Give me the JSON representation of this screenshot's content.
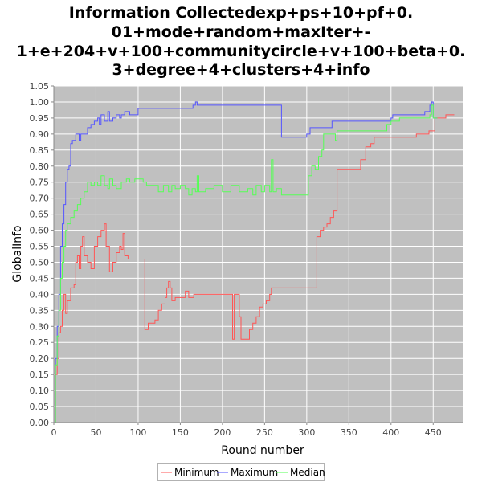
{
  "chart_data": {
    "type": "line",
    "title_lines": [
      "Information Collectedexp+ps+10+pf+0.",
      "01+mode+random+maxIter+-",
      "1+e+204+v+100+communitycircle+v+100+beta+0.",
      "3+degree+4+clusters+4+info"
    ],
    "xlabel": "Round number",
    "ylabel": "GlobalInfo",
    "xlim": [
      0,
      485
    ],
    "ylim": [
      0.0,
      1.05
    ],
    "x_ticks": [
      0,
      50,
      100,
      150,
      200,
      250,
      300,
      350,
      400,
      450
    ],
    "y_ticks": [
      "0.00",
      "0.05",
      "0.10",
      "0.15",
      "0.20",
      "0.25",
      "0.30",
      "0.35",
      "0.40",
      "0.45",
      "0.50",
      "0.55",
      "0.60",
      "0.65",
      "0.70",
      "0.75",
      "0.80",
      "0.85",
      "0.90",
      "0.95",
      "1.00",
      "1.05"
    ],
    "grid": true,
    "legend_position": "bottom-center",
    "background": "#c0c0c0",
    "series": [
      {
        "name": "Minimum",
        "color": "#ff5555",
        "points": [
          [
            0,
            0.0
          ],
          [
            2,
            0.15
          ],
          [
            4,
            0.2
          ],
          [
            6,
            0.28
          ],
          [
            8,
            0.3
          ],
          [
            10,
            0.35
          ],
          [
            12,
            0.4
          ],
          [
            14,
            0.34
          ],
          [
            16,
            0.38
          ],
          [
            20,
            0.42
          ],
          [
            24,
            0.43
          ],
          [
            26,
            0.5
          ],
          [
            28,
            0.52
          ],
          [
            30,
            0.48
          ],
          [
            32,
            0.55
          ],
          [
            34,
            0.58
          ],
          [
            36,
            0.52
          ],
          [
            40,
            0.5
          ],
          [
            44,
            0.48
          ],
          [
            48,
            0.55
          ],
          [
            52,
            0.58
          ],
          [
            56,
            0.6
          ],
          [
            60,
            0.62
          ],
          [
            62,
            0.55
          ],
          [
            66,
            0.47
          ],
          [
            70,
            0.5
          ],
          [
            74,
            0.53
          ],
          [
            78,
            0.55
          ],
          [
            80,
            0.54
          ],
          [
            82,
            0.59
          ],
          [
            84,
            0.52
          ],
          [
            88,
            0.51
          ],
          [
            100,
            0.51
          ],
          [
            106,
            0.51
          ],
          [
            108,
            0.29
          ],
          [
            112,
            0.31
          ],
          [
            116,
            0.31
          ],
          [
            120,
            0.32
          ],
          [
            124,
            0.35
          ],
          [
            128,
            0.37
          ],
          [
            132,
            0.39
          ],
          [
            134,
            0.42
          ],
          [
            136,
            0.44
          ],
          [
            138,
            0.42
          ],
          [
            140,
            0.38
          ],
          [
            144,
            0.39
          ],
          [
            150,
            0.39
          ],
          [
            154,
            0.39
          ],
          [
            156,
            0.41
          ],
          [
            160,
            0.39
          ],
          [
            164,
            0.39
          ],
          [
            166,
            0.4
          ],
          [
            170,
            0.4
          ],
          [
            185,
            0.4
          ],
          [
            200,
            0.4
          ],
          [
            210,
            0.4
          ],
          [
            212,
            0.26
          ],
          [
            214,
            0.4
          ],
          [
            218,
            0.4
          ],
          [
            220,
            0.33
          ],
          [
            222,
            0.26
          ],
          [
            228,
            0.26
          ],
          [
            232,
            0.29
          ],
          [
            236,
            0.31
          ],
          [
            240,
            0.33
          ],
          [
            244,
            0.36
          ],
          [
            248,
            0.37
          ],
          [
            252,
            0.38
          ],
          [
            256,
            0.4
          ],
          [
            258,
            0.42
          ],
          [
            270,
            0.42
          ],
          [
            290,
            0.42
          ],
          [
            300,
            0.42
          ],
          [
            310,
            0.42
          ],
          [
            312,
            0.58
          ],
          [
            316,
            0.6
          ],
          [
            320,
            0.61
          ],
          [
            324,
            0.62
          ],
          [
            328,
            0.64
          ],
          [
            332,
            0.66
          ],
          [
            334,
            0.66
          ],
          [
            336,
            0.79
          ],
          [
            350,
            0.79
          ],
          [
            360,
            0.79
          ],
          [
            364,
            0.82
          ],
          [
            370,
            0.86
          ],
          [
            376,
            0.87
          ],
          [
            380,
            0.89
          ],
          [
            400,
            0.89
          ],
          [
            420,
            0.89
          ],
          [
            430,
            0.9
          ],
          [
            440,
            0.9
          ],
          [
            445,
            0.91
          ],
          [
            450,
            0.91
          ],
          [
            452,
            0.95
          ],
          [
            465,
            0.96
          ],
          [
            475,
            0.96
          ]
        ]
      },
      {
        "name": "Maximum",
        "color": "#5555ff",
        "points": [
          [
            0,
            0.0
          ],
          [
            2,
            0.2
          ],
          [
            4,
            0.3
          ],
          [
            6,
            0.4
          ],
          [
            8,
            0.55
          ],
          [
            10,
            0.62
          ],
          [
            12,
            0.68
          ],
          [
            14,
            0.75
          ],
          [
            16,
            0.79
          ],
          [
            18,
            0.8
          ],
          [
            20,
            0.87
          ],
          [
            22,
            0.88
          ],
          [
            24,
            0.88
          ],
          [
            26,
            0.9
          ],
          [
            28,
            0.9
          ],
          [
            30,
            0.88
          ],
          [
            32,
            0.9
          ],
          [
            36,
            0.9
          ],
          [
            40,
            0.92
          ],
          [
            44,
            0.93
          ],
          [
            48,
            0.94
          ],
          [
            52,
            0.95
          ],
          [
            54,
            0.93
          ],
          [
            56,
            0.96
          ],
          [
            60,
            0.94
          ],
          [
            64,
            0.97
          ],
          [
            66,
            0.94
          ],
          [
            70,
            0.95
          ],
          [
            74,
            0.96
          ],
          [
            78,
            0.95
          ],
          [
            80,
            0.96
          ],
          [
            84,
            0.97
          ],
          [
            90,
            0.96
          ],
          [
            96,
            0.96
          ],
          [
            100,
            0.98
          ],
          [
            110,
            0.98
          ],
          [
            130,
            0.98
          ],
          [
            150,
            0.98
          ],
          [
            155,
            0.98
          ],
          [
            160,
            0.98
          ],
          [
            165,
            0.99
          ],
          [
            168,
            1.0
          ],
          [
            170,
            0.99
          ],
          [
            200,
            0.99
          ],
          [
            240,
            0.99
          ],
          [
            260,
            0.99
          ],
          [
            268,
            0.99
          ],
          [
            270,
            0.89
          ],
          [
            290,
            0.89
          ],
          [
            300,
            0.9
          ],
          [
            304,
            0.92
          ],
          [
            320,
            0.92
          ],
          [
            330,
            0.94
          ],
          [
            350,
            0.94
          ],
          [
            380,
            0.94
          ],
          [
            400,
            0.95
          ],
          [
            402,
            0.96
          ],
          [
            430,
            0.96
          ],
          [
            440,
            0.97
          ],
          [
            446,
            0.99
          ],
          [
            448,
            1.0
          ],
          [
            450,
            0.95
          ],
          [
            455,
            0.95
          ]
        ]
      },
      {
        "name": "Median",
        "color": "#55ff55",
        "points": [
          [
            0,
            0.0
          ],
          [
            2,
            0.18
          ],
          [
            4,
            0.27
          ],
          [
            6,
            0.35
          ],
          [
            8,
            0.45
          ],
          [
            10,
            0.5
          ],
          [
            12,
            0.55
          ],
          [
            14,
            0.6
          ],
          [
            16,
            0.62
          ],
          [
            20,
            0.64
          ],
          [
            24,
            0.66
          ],
          [
            28,
            0.68
          ],
          [
            32,
            0.7
          ],
          [
            36,
            0.72
          ],
          [
            40,
            0.75
          ],
          [
            44,
            0.74
          ],
          [
            48,
            0.75
          ],
          [
            52,
            0.74
          ],
          [
            56,
            0.77
          ],
          [
            60,
            0.74
          ],
          [
            64,
            0.73
          ],
          [
            66,
            0.76
          ],
          [
            70,
            0.74
          ],
          [
            74,
            0.73
          ],
          [
            80,
            0.75
          ],
          [
            86,
            0.76
          ],
          [
            90,
            0.75
          ],
          [
            96,
            0.76
          ],
          [
            100,
            0.76
          ],
          [
            106,
            0.75
          ],
          [
            110,
            0.74
          ],
          [
            116,
            0.74
          ],
          [
            120,
            0.74
          ],
          [
            124,
            0.72
          ],
          [
            130,
            0.74
          ],
          [
            136,
            0.72
          ],
          [
            140,
            0.74
          ],
          [
            144,
            0.73
          ],
          [
            150,
            0.74
          ],
          [
            156,
            0.73
          ],
          [
            160,
            0.71
          ],
          [
            164,
            0.73
          ],
          [
            168,
            0.72
          ],
          [
            170,
            0.77
          ],
          [
            172,
            0.72
          ],
          [
            180,
            0.73
          ],
          [
            190,
            0.74
          ],
          [
            200,
            0.72
          ],
          [
            210,
            0.74
          ],
          [
            220,
            0.72
          ],
          [
            230,
            0.73
          ],
          [
            236,
            0.71
          ],
          [
            240,
            0.74
          ],
          [
            246,
            0.72
          ],
          [
            250,
            0.74
          ],
          [
            256,
            0.72
          ],
          [
            258,
            0.82
          ],
          [
            260,
            0.72
          ],
          [
            264,
            0.73
          ],
          [
            270,
            0.71
          ],
          [
            280,
            0.71
          ],
          [
            290,
            0.71
          ],
          [
            300,
            0.71
          ],
          [
            302,
            0.77
          ],
          [
            306,
            0.8
          ],
          [
            310,
            0.79
          ],
          [
            314,
            0.83
          ],
          [
            318,
            0.85
          ],
          [
            320,
            0.9
          ],
          [
            324,
            0.9
          ],
          [
            330,
            0.9
          ],
          [
            334,
            0.88
          ],
          [
            336,
            0.91
          ],
          [
            350,
            0.91
          ],
          [
            360,
            0.91
          ],
          [
            380,
            0.91
          ],
          [
            390,
            0.91
          ],
          [
            395,
            0.93
          ],
          [
            400,
            0.94
          ],
          [
            410,
            0.95
          ],
          [
            420,
            0.95
          ],
          [
            440,
            0.95
          ],
          [
            446,
            0.96
          ],
          [
            448,
            0.99
          ],
          [
            450,
            0.95
          ],
          [
            455,
            0.95
          ]
        ]
      }
    ]
  }
}
